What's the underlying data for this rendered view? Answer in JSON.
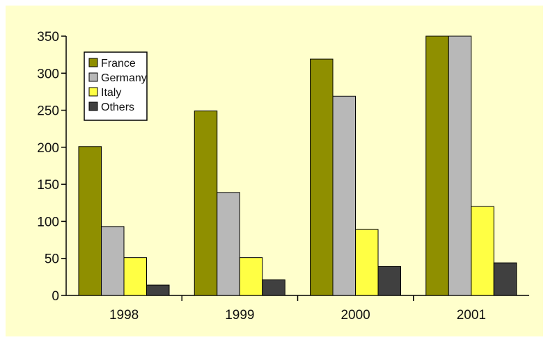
{
  "chart_data": {
    "type": "bar",
    "title": "",
    "xlabel": "",
    "ylabel": "",
    "categories": [
      "1998",
      "1999",
      "2000",
      "2001"
    ],
    "series": [
      {
        "name": "France",
        "values": [
          201,
          249,
          319,
          350
        ],
        "color": "#8f8f00"
      },
      {
        "name": "Germany",
        "values": [
          93,
          139,
          269,
          350
        ],
        "color": "#b8b8b8"
      },
      {
        "name": "Italy",
        "values": [
          51,
          51,
          89,
          120
        ],
        "color": "#ffff44"
      },
      {
        "name": "Others",
        "values": [
          14,
          21,
          39,
          44
        ],
        "color": "#404040"
      }
    ],
    "ylim": [
      0,
      350
    ],
    "yticks": [
      "0",
      "50",
      "100",
      "150",
      "200",
      "250",
      "300",
      "350"
    ],
    "grid": false,
    "legend_position": "top-left",
    "background_color": "#ffffcc"
  }
}
